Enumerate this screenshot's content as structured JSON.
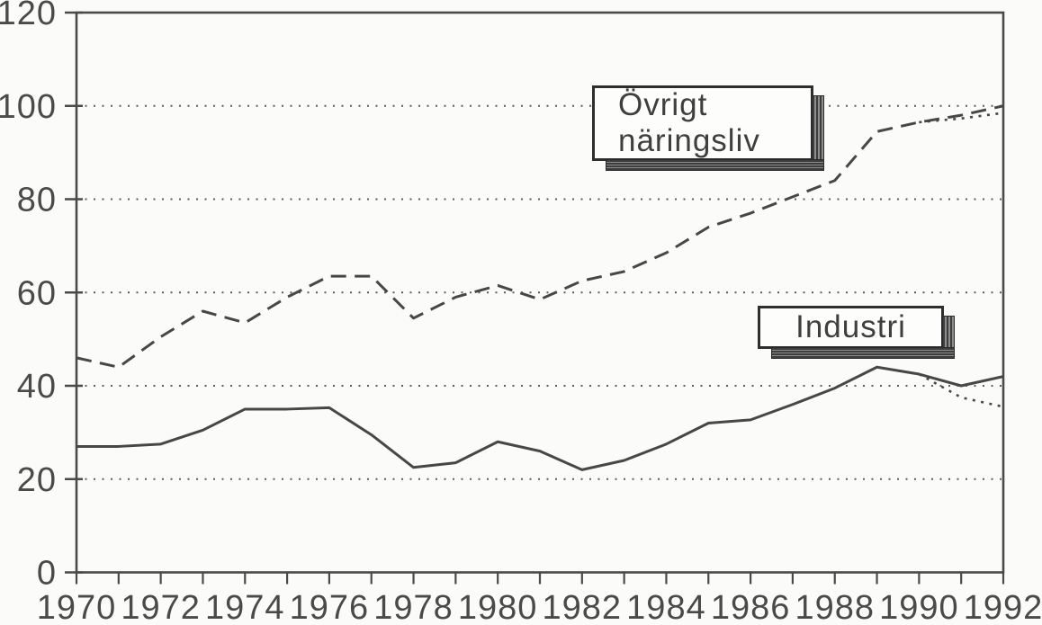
{
  "chart_data": {
    "type": "line",
    "title": "",
    "xlabel": "",
    "ylabel": "",
    "xlim": [
      1970,
      1992
    ],
    "ylim": [
      0,
      120
    ],
    "yticks": [
      0,
      20,
      40,
      60,
      80,
      100,
      120
    ],
    "ytick_labels": [
      "0",
      "20",
      "40",
      "60",
      "80",
      "100",
      "120"
    ],
    "xticks": [
      1970,
      1972,
      1974,
      1976,
      1978,
      1980,
      1982,
      1984,
      1986,
      1988,
      1990,
      1992
    ],
    "xtick_labels": [
      "1970",
      "1972",
      "1974",
      "1976",
      "1978",
      "1980",
      "1982",
      "1984",
      "1986",
      "1988",
      "1990",
      "1992"
    ],
    "minor_xtick_step": 1,
    "grid": "horizontal-dotted",
    "grid_values": [
      20,
      40,
      60,
      80,
      100
    ],
    "legend_position": "inline-callout-boxes",
    "x": [
      1970,
      1971,
      1972,
      1973,
      1974,
      1975,
      1976,
      1977,
      1978,
      1979,
      1980,
      1981,
      1982,
      1983,
      1984,
      1985,
      1986,
      1987,
      1988,
      1989,
      1990,
      1991,
      1992
    ],
    "series": [
      {
        "id": "ovrigt-naringsliv",
        "label": "Övrigt näringsliv",
        "style": "dashed",
        "values": [
          46,
          44,
          50.5,
          56,
          53.5,
          59,
          63.5,
          63.5,
          54.5,
          59,
          61.5,
          58.5,
          62.5,
          64.5,
          68.5,
          74,
          77,
          80.5,
          84,
          94.5,
          96.5,
          98,
          100
        ]
      },
      {
        "id": "ovrigt-naringsliv-alt",
        "label": "Övrigt näringsliv",
        "style": "dotted",
        "x": [
          1990,
          1991,
          1992
        ],
        "values": [
          96.5,
          97.3,
          98.5
        ]
      },
      {
        "id": "industri",
        "label": "Industri",
        "style": "solid",
        "values": [
          27,
          27,
          27.5,
          30.5,
          35,
          35,
          35.3,
          29.5,
          22.5,
          23.5,
          28,
          26,
          22,
          24,
          27.5,
          32,
          32.7,
          36,
          39.5,
          44,
          42.5,
          40,
          42
        ]
      },
      {
        "id": "industri-alt",
        "label": "Industri",
        "style": "dotted",
        "x": [
          1990,
          1991,
          1992
        ],
        "values": [
          42.5,
          37.5,
          35.5
        ]
      }
    ],
    "colors": {
      "line": "#474747",
      "grid": "#5c5c5c",
      "frame": "#4a4a4a",
      "text": "#4a4a4a",
      "background": "#fbfbf9"
    }
  },
  "callouts": {
    "ovrigt": {
      "line1": "Övrigt",
      "line2": "näringsliv"
    },
    "industri": {
      "label": "Industri"
    }
  }
}
